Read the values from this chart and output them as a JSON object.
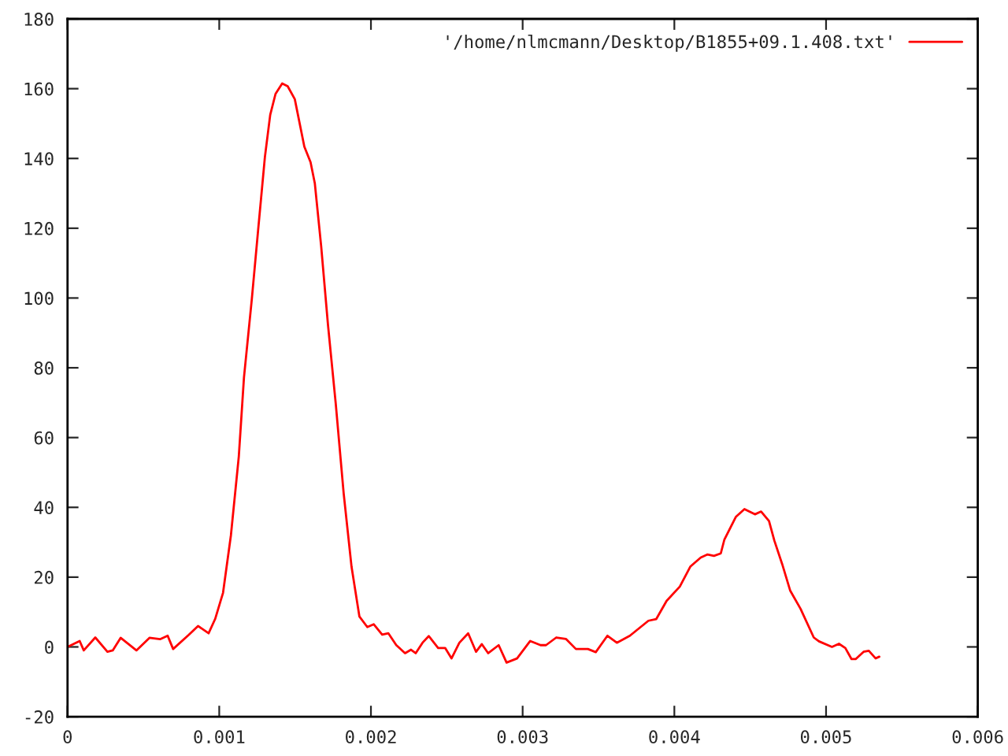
{
  "chart_data": {
    "type": "line",
    "x": [
      0,
      8e-05,
      0.000107,
      0.000183,
      0.000263,
      0.000298,
      0.00035,
      0.000454,
      0.00054,
      0.00061,
      0.00066,
      0.000696,
      0.0008,
      0.00086,
      0.00093,
      0.000973,
      0.001025,
      0.001077,
      0.001129,
      0.001163,
      0.001215,
      0.001256,
      0.001301,
      0.001336,
      0.001371,
      0.001415,
      0.001451,
      0.001498,
      0.001561,
      0.001602,
      0.00163,
      0.001672,
      0.001717,
      0.001768,
      0.00182,
      0.001872,
      0.001924,
      0.001976,
      0.002018,
      0.002074,
      0.002115,
      0.002167,
      0.002225,
      0.002264,
      0.002295,
      0.00234,
      0.002381,
      0.002443,
      0.002489,
      0.002531,
      0.002583,
      0.002641,
      0.002693,
      0.002731,
      0.002773,
      0.002842,
      0.002894,
      0.002963,
      0.00305,
      0.003118,
      0.003154,
      0.003222,
      0.003285,
      0.003351,
      0.00343,
      0.003482,
      0.003559,
      0.003621,
      0.003707,
      0.003829,
      0.003881,
      0.003949,
      0.004036,
      0.004105,
      0.004174,
      0.004219,
      0.004261,
      0.004306,
      0.00433,
      0.004406,
      0.004462,
      0.004531,
      0.004572,
      0.004624,
      0.004659,
      0.004711,
      0.004763,
      0.004832,
      0.004919,
      0.004953,
      0.005039,
      0.005085,
      0.005127,
      0.005168,
      0.005195,
      0.005247,
      0.005282,
      0.005327,
      0.005351
    ],
    "series": [
      {
        "name": "'/home/nlmcmann/Desktop/B1855+09.1.408.txt'",
        "color": "#ff0000",
        "values": [
          0,
          1.7,
          -1,
          2.7,
          -1.4,
          -1,
          2.6,
          -1,
          2.6,
          2.2,
          3.2,
          -0.6,
          3.5,
          6,
          3.9,
          8,
          15.5,
          32,
          54.6,
          77.2,
          99.8,
          119.3,
          140.4,
          152.5,
          158.5,
          161.5,
          160.7,
          157,
          143.4,
          138.9,
          132.9,
          114.8,
          92.2,
          69.7,
          44.1,
          23,
          8.7,
          5.7,
          6.5,
          3.5,
          3.9,
          0.5,
          -1.8,
          -0.8,
          -1.8,
          1.2,
          3.1,
          -0.3,
          -0.3,
          -3.3,
          1.2,
          3.9,
          -1.4,
          0.8,
          -1.8,
          0.5,
          -4.5,
          -3.3,
          1.7,
          0.5,
          0.5,
          2.7,
          2.3,
          -0.6,
          -0.6,
          -1.5,
          3.2,
          1.2,
          3.2,
          7.5,
          8,
          13.2,
          17.3,
          23,
          25.6,
          26.5,
          26.1,
          26.8,
          30.8,
          37.3,
          39.5,
          38,
          38.8,
          36.1,
          30.5,
          23.7,
          16.2,
          10.9,
          2.7,
          1.6,
          0,
          0.9,
          -0.3,
          -3.5,
          -3.5,
          -1.4,
          -1.1,
          -3.3,
          -2.8
        ]
      }
    ],
    "xlim": [
      0,
      0.006
    ],
    "ylim": [
      -20,
      180
    ],
    "xticks": [
      0,
      0.001,
      0.002,
      0.003,
      0.004,
      0.005,
      0.006
    ],
    "yticks": [
      -20,
      0,
      20,
      40,
      60,
      80,
      100,
      120,
      140,
      160,
      180
    ],
    "legend": "top right",
    "grid": false,
    "marker": "none",
    "line_style": "solid"
  }
}
